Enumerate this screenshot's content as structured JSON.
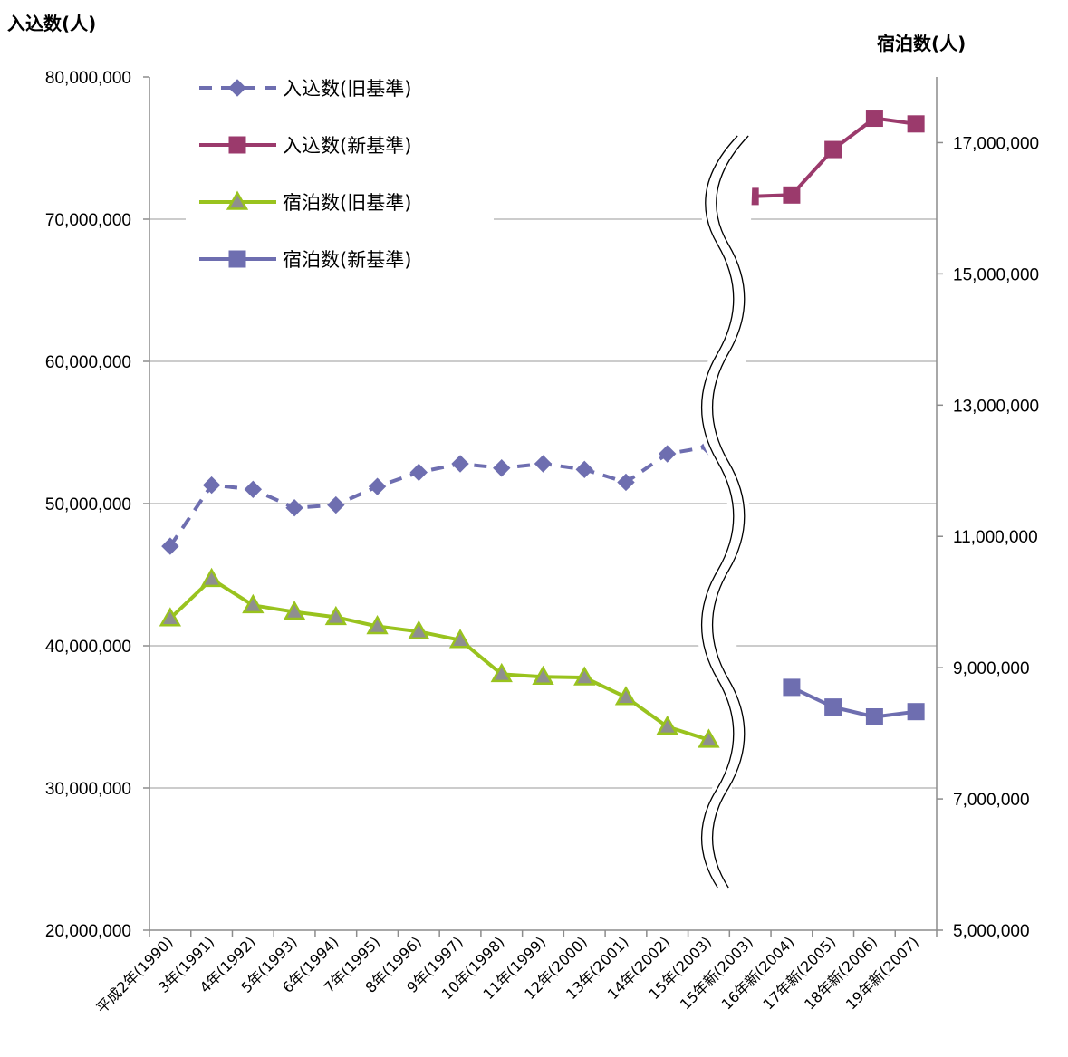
{
  "chart_data": {
    "type": "line",
    "ylabel_left": "入込数(人)",
    "ylabel_right": "宿泊数(人)",
    "categories": [
      "平成2年(1990)",
      "3年(1991)",
      "4年(1992)",
      "5年(1993)",
      "6年(1994)",
      "7年(1995)",
      "8年(1996)",
      "9年(1997)",
      "10年(1998)",
      "11年(1999)",
      "12年(2000)",
      "13年(2001)",
      "14年(2002)",
      "15年(2003)",
      "15年新(2003)",
      "16年新(2004)",
      "17年新(2005)",
      "18年新(2006)",
      "19年新(2007)"
    ],
    "left_axis": {
      "min": 20000000,
      "max": 80000000,
      "ticks": [
        [
          "20000000",
          "20,000,000"
        ],
        [
          "30000000",
          "30,000,000"
        ],
        [
          "40000000",
          "40,000,000"
        ],
        [
          "50000000",
          "50,000,000"
        ],
        [
          "60000000",
          "60,000,000"
        ],
        [
          "70000000",
          "70,000,000"
        ],
        [
          "80000000",
          "80,000,000"
        ]
      ]
    },
    "right_axis": {
      "min": 5000000,
      "max": 18000000,
      "ticks": [
        [
          "5000000",
          "5,000,000"
        ],
        [
          "7000000",
          "7,000,000"
        ],
        [
          "9000000",
          "9,000,000"
        ],
        [
          "11000000",
          "11,000,000"
        ],
        [
          "13000000",
          "13,000,000"
        ],
        [
          "15000000",
          "15,000,000"
        ],
        [
          "17000000",
          "17,000,000"
        ]
      ]
    },
    "grid": "horizontal",
    "axis_break": "between 15年(2003) and 16年新(2004)",
    "legend_position": "top-left",
    "series": [
      {
        "name": "入込数(旧基準)",
        "axis": "left",
        "marker": "diamond",
        "style": "dashed",
        "color": "#6e6eb0",
        "values": [
          47000000,
          51300000,
          51000000,
          49700000,
          49900000,
          51200000,
          52200000,
          52800000,
          52500000,
          52800000,
          52400000,
          51500000,
          53500000,
          54000000,
          null,
          null,
          null,
          null,
          null
        ]
      },
      {
        "name": "入込数(新基準)",
        "axis": "left",
        "marker": "square",
        "style": "solid",
        "color": "#9b3a6c",
        "values": [
          null,
          null,
          null,
          null,
          null,
          null,
          null,
          null,
          null,
          null,
          null,
          null,
          null,
          null,
          71600000,
          71700000,
          74900000,
          77100000,
          76700000
        ]
      },
      {
        "name": "宿泊数(旧基準)",
        "axis": "right",
        "marker": "triangle",
        "style": "solid",
        "color": "#99c31e",
        "values": [
          9750000,
          10350000,
          9950000,
          9850000,
          9770000,
          9630000,
          9550000,
          9420000,
          8900000,
          8860000,
          8850000,
          8550000,
          8100000,
          7900000,
          null,
          null,
          null,
          null,
          null
        ]
      },
      {
        "name": "宿泊数(新基準)",
        "axis": "right",
        "marker": "square",
        "style": "solid",
        "color": "#6e6eb0",
        "values": [
          null,
          null,
          null,
          null,
          null,
          null,
          null,
          null,
          null,
          null,
          null,
          null,
          null,
          null,
          null,
          8700000,
          8400000,
          8250000,
          8330000
        ]
      }
    ]
  }
}
